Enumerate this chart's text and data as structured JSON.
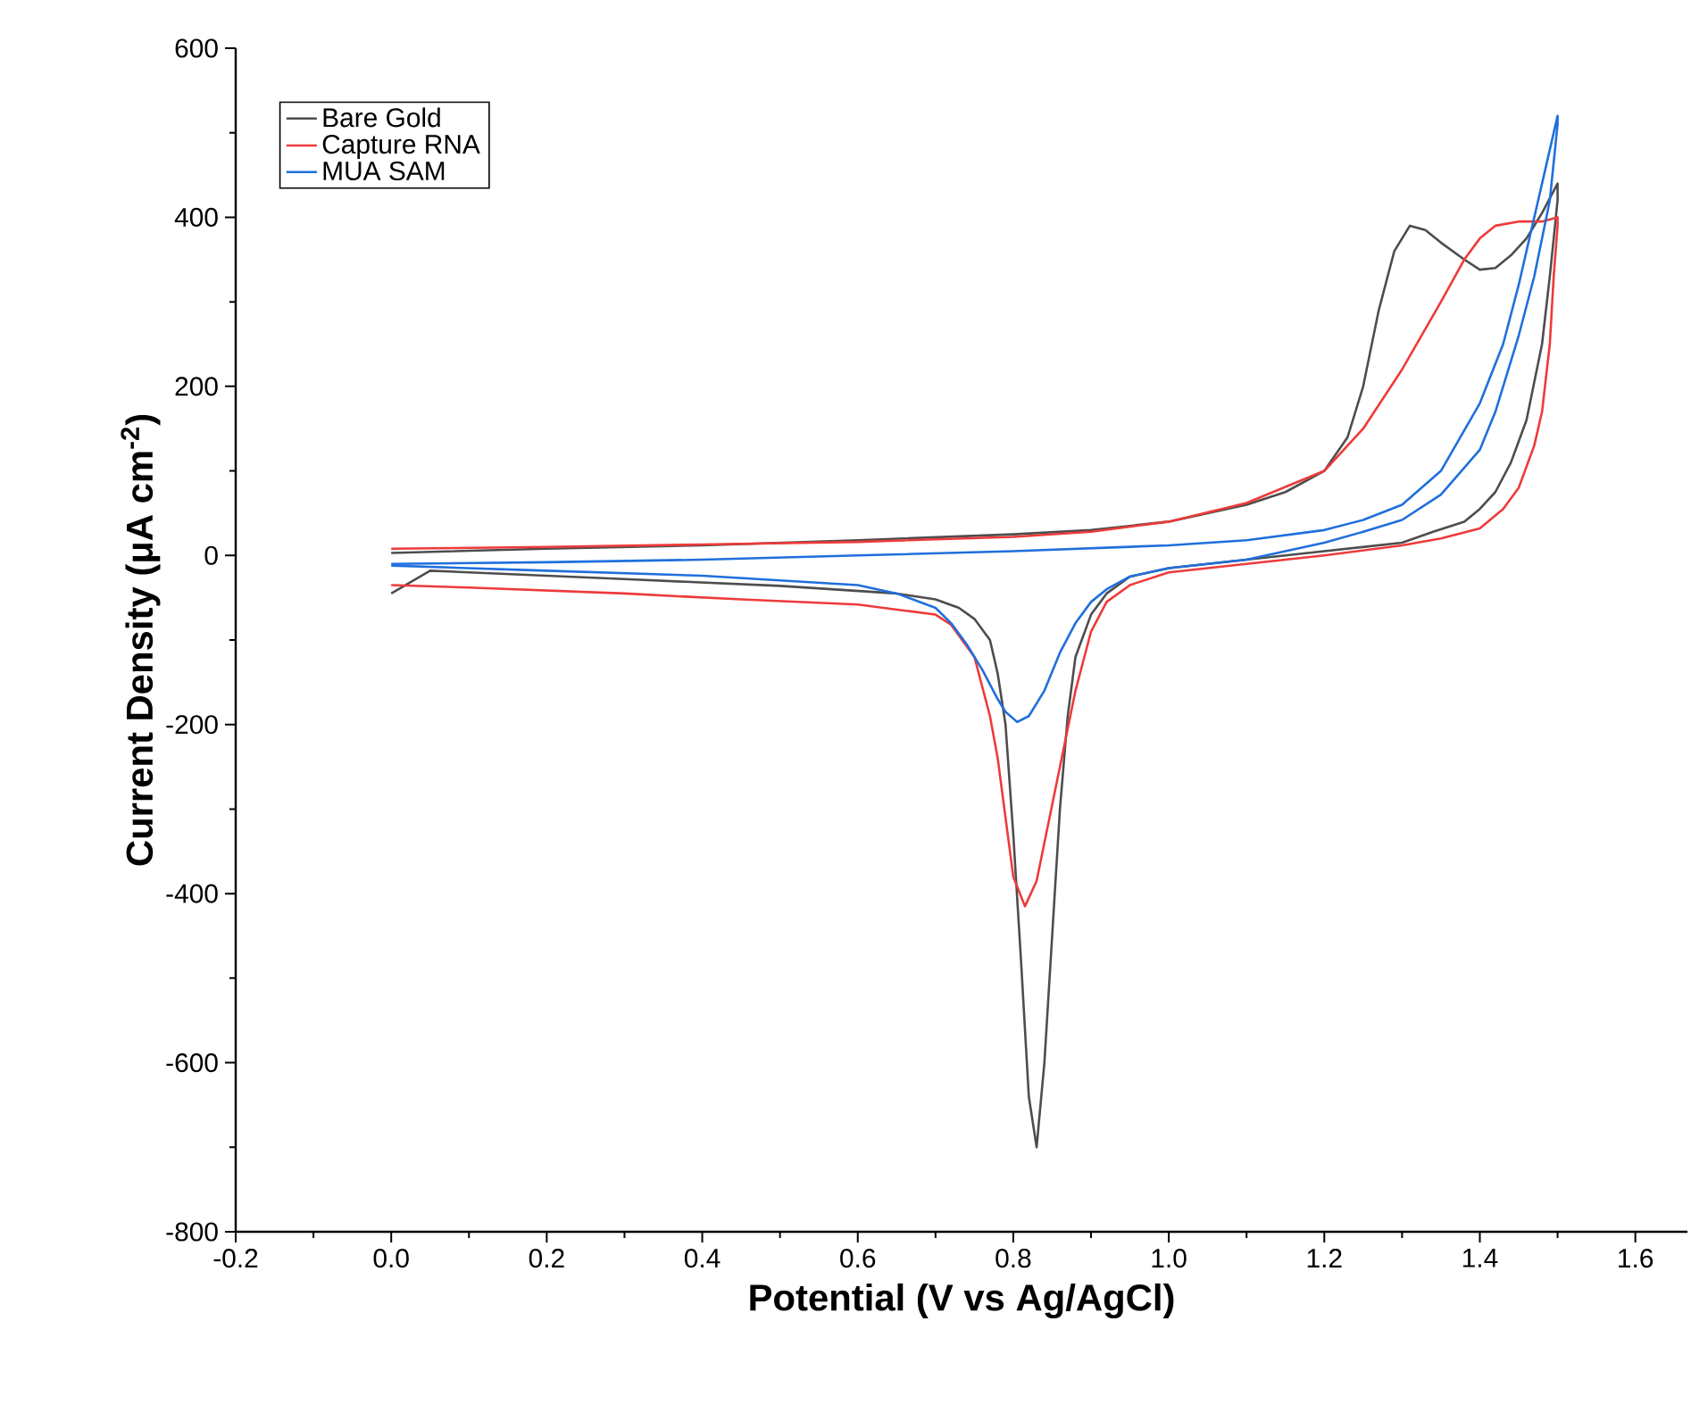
{
  "chart_data": {
    "type": "line",
    "xlabel": "Potential (V vs Ag/AgCl)",
    "ylabel": "Current Density (μA cm$^{-2}$)",
    "xlim": [
      -0.2,
      1.667
    ],
    "ylim": [
      -800,
      600
    ],
    "xticks": [
      {
        "value": -0.2,
        "label": "-0.2"
      },
      {
        "value": 0,
        "label": "0.0"
      },
      {
        "value": 0.2,
        "label": "0.2"
      },
      {
        "value": 0.4,
        "label": "0.4"
      },
      {
        "value": 0.6,
        "label": "0.6"
      },
      {
        "value": 0.8,
        "label": "0.8"
      },
      {
        "value": 1.0,
        "label": "1.0"
      },
      {
        "value": 1.2,
        "label": "1.2"
      },
      {
        "value": 1.4,
        "label": "1.4"
      },
      {
        "value": 1.6,
        "label": "1.6"
      }
    ],
    "yticks": [
      -800,
      -600,
      -400,
      -200,
      0,
      200,
      400,
      600
    ],
    "grid": false,
    "legend": "top left",
    "marker": "none",
    "line_style": "solid",
    "series": [
      {
        "name": "Bare Gold",
        "color": "#4d4d4d",
        "x": [
          0.0,
          0.2,
          0.4,
          0.6,
          0.8,
          0.9,
          1.0,
          1.1,
          1.15,
          1.2,
          1.23,
          1.25,
          1.27,
          1.29,
          1.31,
          1.33,
          1.35,
          1.38,
          1.4,
          1.42,
          1.44,
          1.46,
          1.48,
          1.5,
          1.5,
          1.49,
          1.48,
          1.46,
          1.44,
          1.42,
          1.4,
          1.38,
          1.34,
          1.3,
          1.2,
          1.1,
          1.0,
          0.95,
          0.92,
          0.9,
          0.88,
          0.87,
          0.86,
          0.85,
          0.84,
          0.83,
          0.82,
          0.81,
          0.8,
          0.79,
          0.78,
          0.77,
          0.75,
          0.73,
          0.7,
          0.65,
          0.5,
          0.3,
          0.1,
          0.05,
          0.0
        ],
        "values": [
          3,
          8,
          12,
          18,
          25,
          30,
          40,
          60,
          75,
          100,
          140,
          200,
          290,
          360,
          390,
          385,
          370,
          350,
          338,
          340,
          355,
          375,
          405,
          440,
          420,
          330,
          250,
          160,
          110,
          75,
          55,
          40,
          28,
          15,
          5,
          -5,
          -15,
          -25,
          -45,
          -70,
          -120,
          -190,
          -300,
          -450,
          -600,
          -700,
          -640,
          -480,
          -330,
          -200,
          -140,
          -100,
          -75,
          -62,
          -52,
          -45,
          -36,
          -28,
          -20,
          -18,
          -45
        ]
      },
      {
        "name": "Capture RNA",
        "color": "#ee3a3a",
        "x": [
          0.0,
          0.2,
          0.4,
          0.6,
          0.8,
          0.9,
          1.0,
          1.1,
          1.2,
          1.25,
          1.3,
          1.35,
          1.38,
          1.4,
          1.42,
          1.45,
          1.48,
          1.5,
          1.5,
          1.495,
          1.49,
          1.48,
          1.47,
          1.45,
          1.43,
          1.4,
          1.35,
          1.3,
          1.2,
          1.1,
          1.0,
          0.95,
          0.92,
          0.9,
          0.88,
          0.86,
          0.84,
          0.83,
          0.815,
          0.8,
          0.79,
          0.78,
          0.77,
          0.75,
          0.72,
          0.7,
          0.6,
          0.45,
          0.3,
          0.1,
          0.0
        ],
        "values": [
          8,
          10,
          13,
          16,
          22,
          28,
          40,
          62,
          100,
          150,
          220,
          300,
          350,
          375,
          390,
          395,
          395,
          400,
          390,
          330,
          250,
          170,
          130,
          80,
          55,
          32,
          20,
          12,
          0,
          -10,
          -20,
          -35,
          -55,
          -90,
          -160,
          -250,
          -340,
          -385,
          -415,
          -380,
          -310,
          -240,
          -190,
          -120,
          -82,
          -70,
          -58,
          -52,
          -45,
          -38,
          -35
        ]
      },
      {
        "name": "MUA SAM",
        "color": "#1f6fdc",
        "x": [
          0.0,
          0.2,
          0.4,
          0.6,
          0.8,
          1.0,
          1.1,
          1.2,
          1.25,
          1.3,
          1.35,
          1.4,
          1.43,
          1.45,
          1.47,
          1.49,
          1.5,
          1.5,
          1.49,
          1.47,
          1.45,
          1.42,
          1.4,
          1.35,
          1.3,
          1.25,
          1.2,
          1.1,
          1.0,
          0.95,
          0.92,
          0.9,
          0.88,
          0.86,
          0.84,
          0.82,
          0.805,
          0.79,
          0.78,
          0.76,
          0.74,
          0.72,
          0.7,
          0.65,
          0.6,
          0.4,
          0.2,
          0.1,
          0.0
        ],
        "values": [
          -10,
          -8,
          -5,
          0,
          5,
          12,
          18,
          30,
          42,
          60,
          100,
          180,
          250,
          320,
          400,
          480,
          520,
          510,
          420,
          330,
          260,
          170,
          125,
          72,
          42,
          28,
          15,
          -5,
          -15,
          -25,
          -40,
          -55,
          -80,
          -115,
          -160,
          -190,
          -197,
          -185,
          -170,
          -135,
          -105,
          -80,
          -62,
          -45,
          -35,
          -24,
          -18,
          -15,
          -12
        ]
      }
    ]
  }
}
